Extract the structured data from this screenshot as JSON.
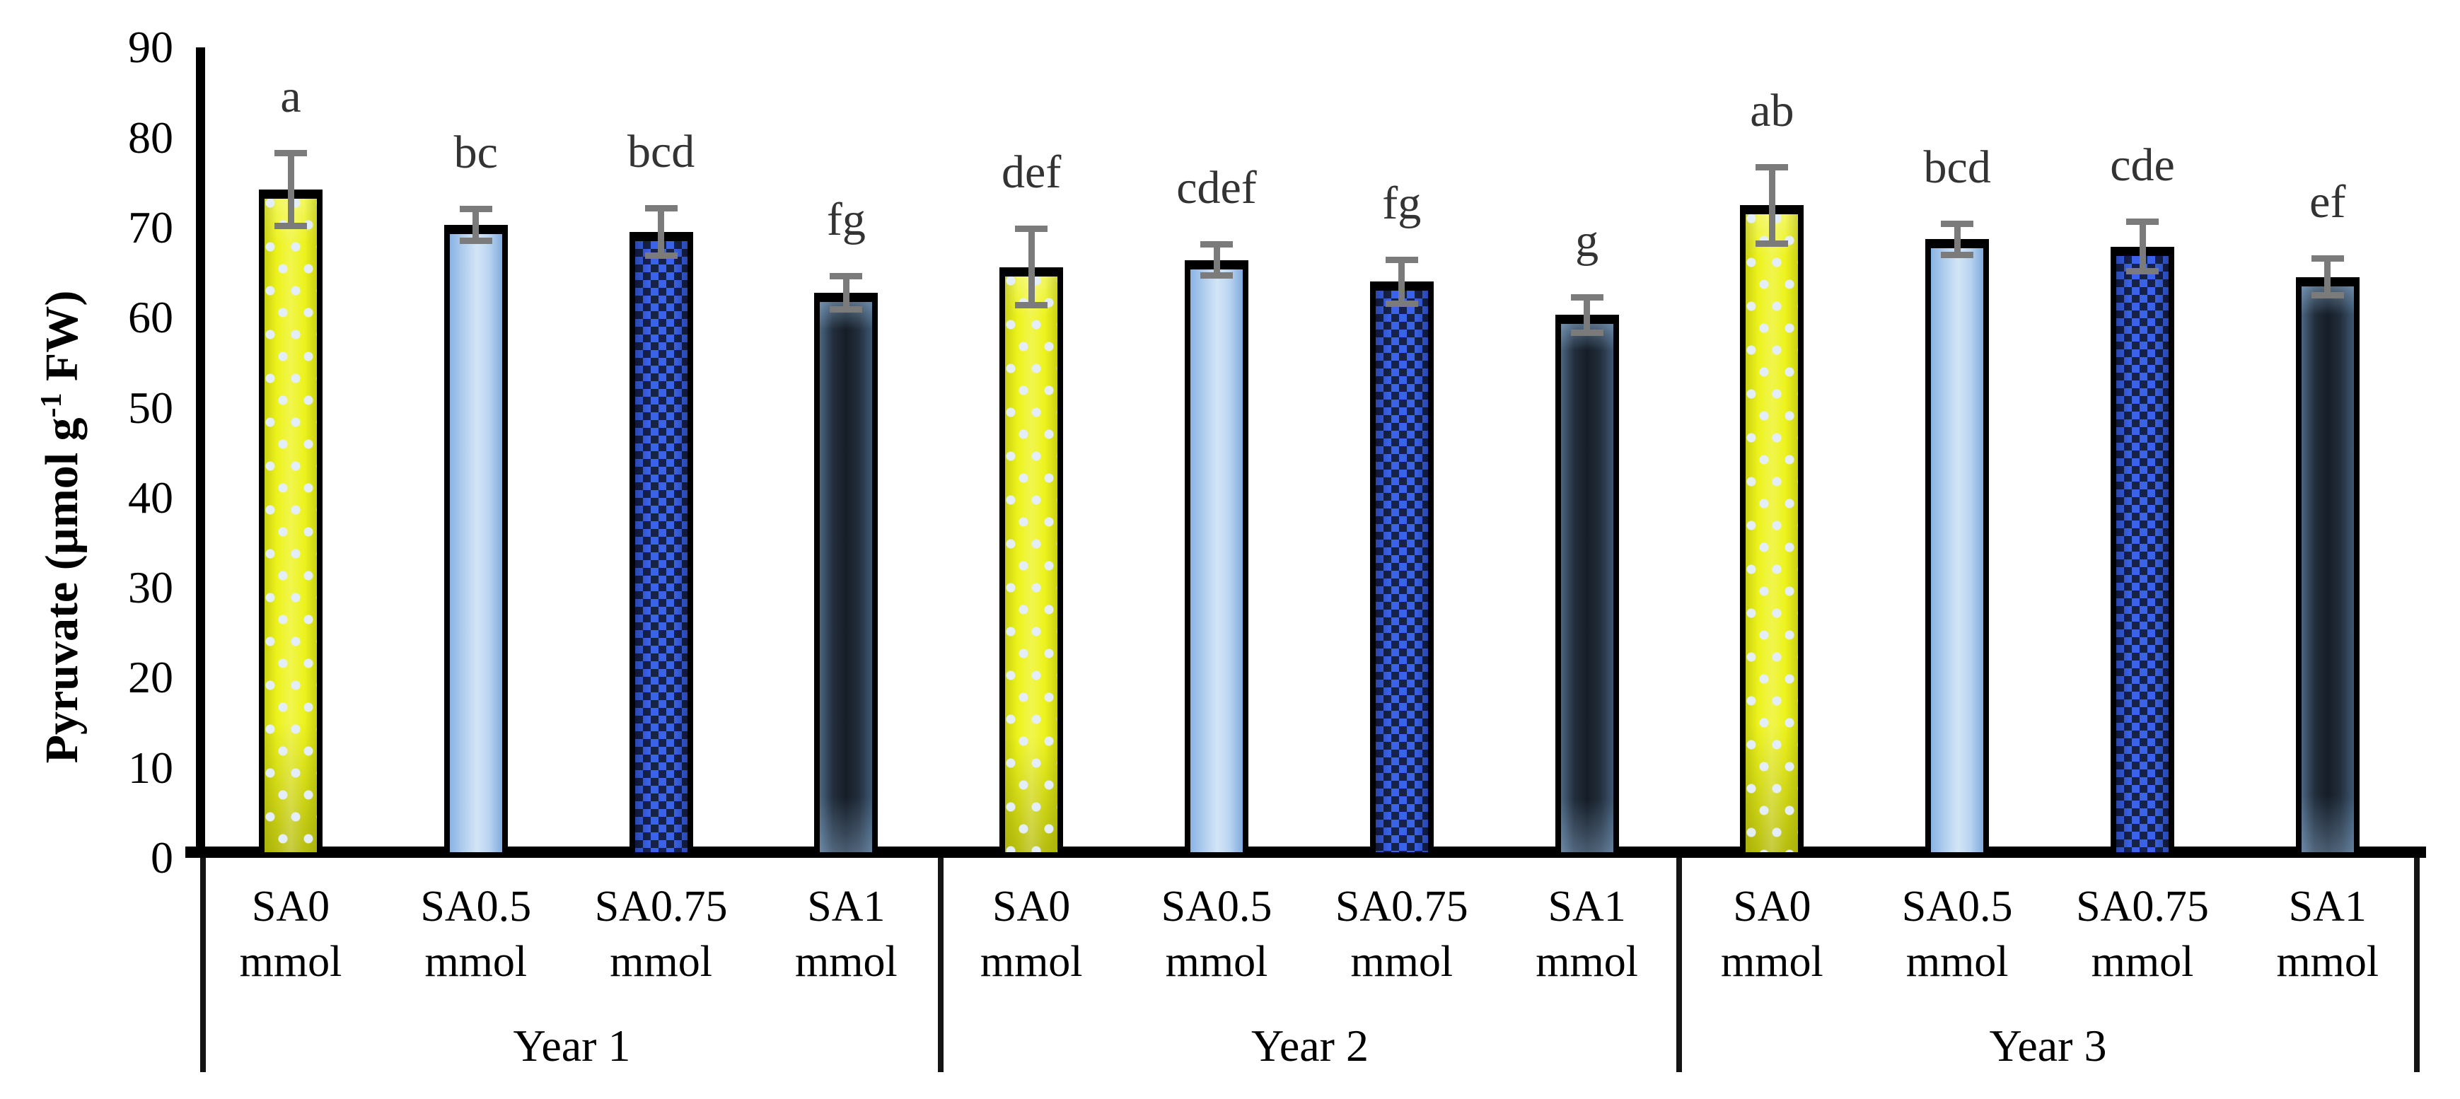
{
  "page": {
    "background": "#ffffff"
  },
  "colors": {
    "axis": "#000000",
    "error_bar": "#7b7b7b",
    "letter_text": "#333333",
    "tick_text": "#000000",
    "bar_border": "#000000",
    "yellow_fill": "#edf31c",
    "yellow_dot": "#e4eefb",
    "lightblue_edge": "#8ab3e4",
    "lightblue_mid": "#d3e5f6",
    "checker_blue": "#3a63ea",
    "checker_dark": "#162247",
    "navy_edge": "#4c6782",
    "navy_mid": "#151d27"
  },
  "chart_data": {
    "type": "bar",
    "title": "",
    "ylabel_prefix": "Pyruvate (µmol g",
    "ylabel_sup": "-1",
    "ylabel_suffix": " FW)",
    "xlabel": "",
    "ylim": [
      0,
      90
    ],
    "ytick_step": 10,
    "yticks": [
      90,
      80,
      70,
      60,
      50,
      40,
      30,
      20,
      10,
      0
    ],
    "grid": false,
    "legend_position": "none",
    "error_bars": true,
    "series_styles": [
      {
        "name": "SA0 mmol",
        "pattern": "yellow-with-light-dots"
      },
      {
        "name": "SA0.5 mmol",
        "pattern": "light-blue-gradient"
      },
      {
        "name": "SA0.75 mmol",
        "pattern": "blue-dark-checker"
      },
      {
        "name": "SA1 mmol",
        "pattern": "dark-navy-gradient"
      }
    ],
    "groups": [
      {
        "label": "Year 1",
        "bars": [
          {
            "cat1": "SA0",
            "cat2": "mmol",
            "value": 74.2,
            "error": 4.4,
            "letter": "a"
          },
          {
            "cat1": "SA0.5",
            "cat2": "mmol",
            "value": 70.3,
            "error": 2.1,
            "letter": "bc"
          },
          {
            "cat1": "SA0.75",
            "cat2": "mmol",
            "value": 69.5,
            "error": 3.0,
            "letter": "bcd"
          },
          {
            "cat1": "SA1",
            "cat2": "mmol",
            "value": 62.8,
            "error": 2.2,
            "letter": "fg"
          }
        ]
      },
      {
        "label": "Year 2",
        "bars": [
          {
            "cat1": "SA0",
            "cat2": "mmol",
            "value": 65.6,
            "error": 4.6,
            "letter": "def"
          },
          {
            "cat1": "SA0.5",
            "cat2": "mmol",
            "value": 66.4,
            "error": 2.1,
            "letter": "cdef"
          },
          {
            "cat1": "SA0.75",
            "cat2": "mmol",
            "value": 64.0,
            "error": 2.8,
            "letter": "fg"
          },
          {
            "cat1": "SA1",
            "cat2": "mmol",
            "value": 60.3,
            "error": 2.3,
            "letter": "g"
          }
        ]
      },
      {
        "label": "Year 3",
        "bars": [
          {
            "cat1": "SA0",
            "cat2": "mmol",
            "value": 72.5,
            "error": 4.6,
            "letter": "ab"
          },
          {
            "cat1": "SA0.5",
            "cat2": "mmol",
            "value": 68.7,
            "error": 2.1,
            "letter": "bcd"
          },
          {
            "cat1": "SA0.75",
            "cat2": "mmol",
            "value": 67.9,
            "error": 3.1,
            "letter": "cde"
          },
          {
            "cat1": "SA1",
            "cat2": "mmol",
            "value": 64.5,
            "error": 2.4,
            "letter": "ef"
          }
        ]
      }
    ]
  }
}
